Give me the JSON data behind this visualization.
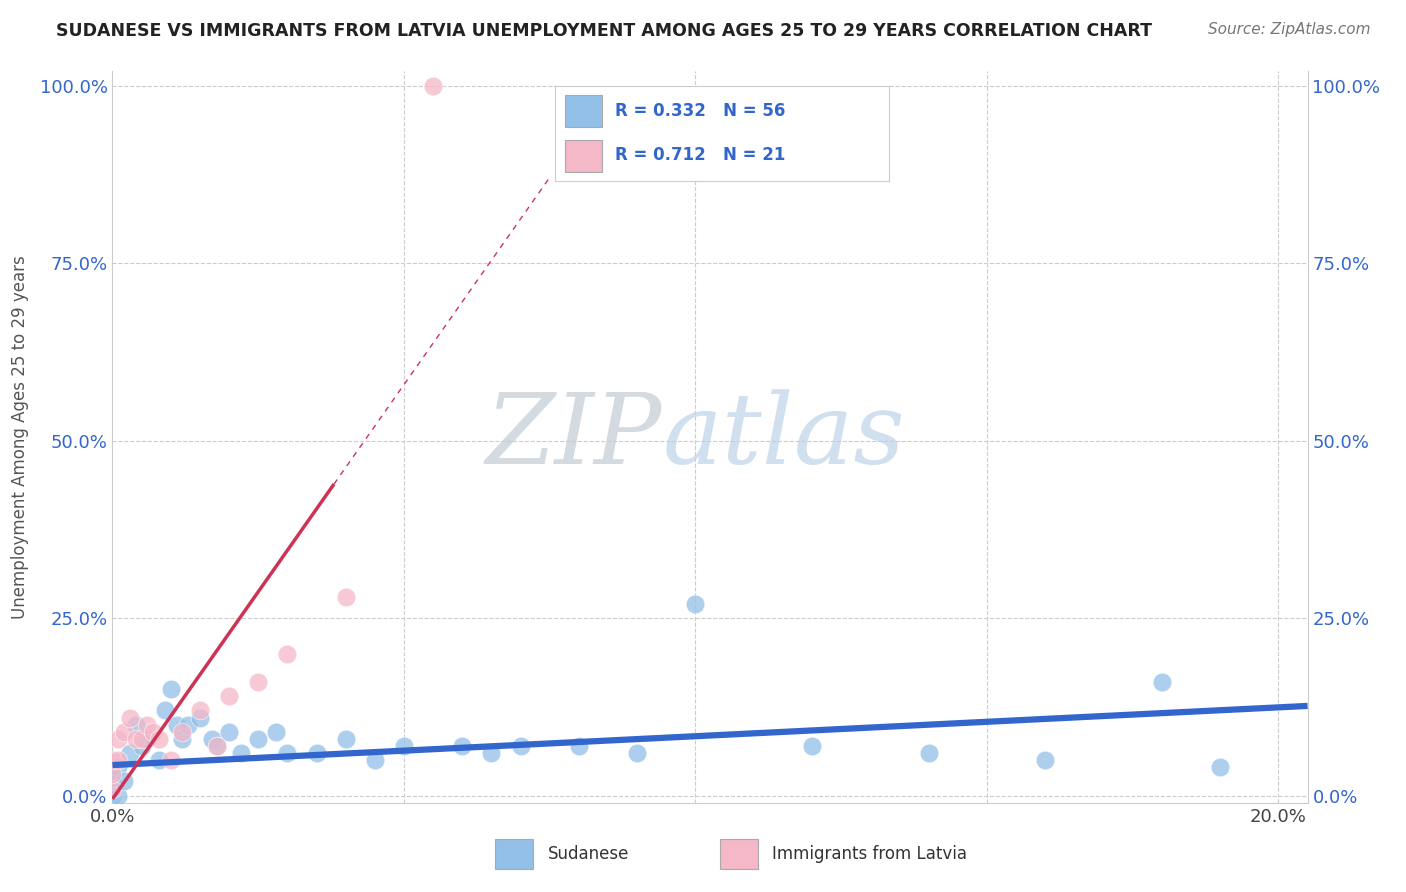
{
  "title": "SUDANESE VS IMMIGRANTS FROM LATVIA UNEMPLOYMENT AMONG AGES 25 TO 29 YEARS CORRELATION CHART",
  "source_text": "Source: ZipAtlas.com",
  "ylabel": "Unemployment Among Ages 25 to 29 years",
  "xlim": [
    0.0,
    0.205
  ],
  "ylim": [
    -0.01,
    1.02
  ],
  "ytick_values": [
    0.0,
    0.25,
    0.5,
    0.75,
    1.0
  ],
  "ytick_labels": [
    "0.0%",
    "25.0%",
    "50.0%",
    "75.0%",
    "100.0%"
  ],
  "xtick_values": [
    0.0,
    0.2
  ],
  "xtick_labels": [
    "0.0%",
    "20.0%"
  ],
  "sudanese_color": "#92c0e8",
  "sudanese_edge_color": "#6aa8d8",
  "latvia_color": "#f4b8c8",
  "latvia_edge_color": "#e8a0b4",
  "sudanese_line_color": "#3366cc",
  "latvia_line_color": "#cc3355",
  "sudanese_R": 0.332,
  "sudanese_N": 56,
  "latvia_R": 0.712,
  "latvia_N": 21,
  "watermark_zip": "ZIP",
  "watermark_atlas": "atlas",
  "background_color": "#ffffff",
  "grid_color": "#cccccc",
  "legend_text_color": "#3366cc",
  "title_color": "#222222",
  "ylabel_color": "#555555",
  "tick_color": "#3366cc",
  "sudanese_x": [
    0.0,
    0.0,
    0.0,
    0.0,
    0.0,
    0.0,
    0.0,
    0.0,
    0.0,
    0.0,
    0.0,
    0.0,
    0.0,
    0.0,
    0.0,
    0.0,
    0.0,
    0.0,
    0.0,
    0.0,
    0.001,
    0.001,
    0.002,
    0.003,
    0.004,
    0.005,
    0.006,
    0.008,
    0.009,
    0.01,
    0.011,
    0.012,
    0.013,
    0.015,
    0.017,
    0.018,
    0.02,
    0.022,
    0.025,
    0.028,
    0.03,
    0.035,
    0.04,
    0.045,
    0.05,
    0.06,
    0.065,
    0.07,
    0.08,
    0.09,
    0.1,
    0.12,
    0.14,
    0.16,
    0.18,
    0.19
  ],
  "sudanese_y": [
    0.0,
    0.0,
    0.0,
    0.0,
    0.0,
    0.005,
    0.005,
    0.008,
    0.01,
    0.01,
    0.012,
    0.015,
    0.015,
    0.02,
    0.02,
    0.02,
    0.025,
    0.025,
    0.03,
    0.03,
    0.0,
    0.04,
    0.02,
    0.06,
    0.1,
    0.07,
    0.08,
    0.05,
    0.12,
    0.15,
    0.1,
    0.08,
    0.1,
    0.11,
    0.08,
    0.07,
    0.09,
    0.06,
    0.08,
    0.09,
    0.06,
    0.06,
    0.08,
    0.05,
    0.07,
    0.07,
    0.06,
    0.07,
    0.07,
    0.06,
    0.27,
    0.07,
    0.06,
    0.05,
    0.16,
    0.04
  ],
  "latvia_x": [
    0.0,
    0.0,
    0.0,
    0.001,
    0.001,
    0.002,
    0.003,
    0.004,
    0.005,
    0.006,
    0.007,
    0.008,
    0.01,
    0.012,
    0.015,
    0.018,
    0.02,
    0.025,
    0.03,
    0.04,
    0.055
  ],
  "latvia_y": [
    0.01,
    0.03,
    0.05,
    0.05,
    0.08,
    0.09,
    0.11,
    0.08,
    0.08,
    0.1,
    0.09,
    0.08,
    0.05,
    0.09,
    0.12,
    0.07,
    0.14,
    0.16,
    0.2,
    0.28,
    1.0
  ]
}
